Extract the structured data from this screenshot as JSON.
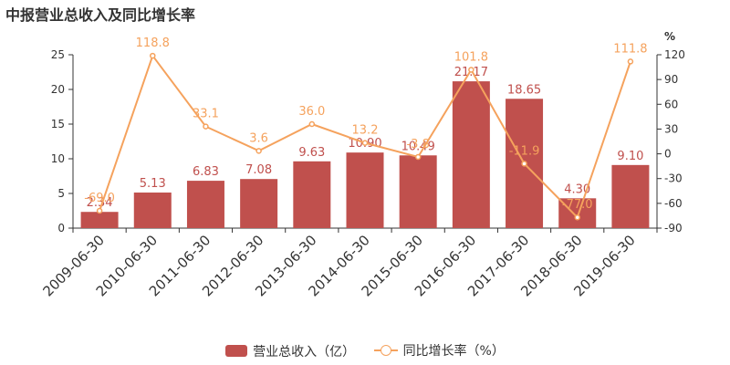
{
  "title": "中报营业总收入及同比增长率",
  "colors": {
    "bar": "#c0504d",
    "line": "#f5a25d",
    "axis": "#333333"
  },
  "chart_data": {
    "type": "bar",
    "categories": [
      "2009-06-30",
      "2010-06-30",
      "2011-06-30",
      "2012-06-30",
      "2013-06-30",
      "2014-06-30",
      "2015-06-30",
      "2016-06-30",
      "2017-06-30",
      "2018-06-30",
      "2019-06-30"
    ],
    "series": [
      {
        "name": "营业总收入（亿）",
        "type": "bar",
        "axis": "left",
        "values": [
          2.34,
          5.13,
          6.83,
          7.08,
          9.63,
          10.9,
          10.49,
          21.17,
          18.65,
          4.3,
          9.1
        ],
        "labels": [
          "2.34",
          "5.13",
          "6.83",
          "7.08",
          "9.63",
          "10.90",
          "10.49",
          "21.17",
          "18.65",
          "4.30",
          "9.10"
        ]
      },
      {
        "name": "同比增长率（%）",
        "type": "line",
        "axis": "right",
        "values": [
          -69.0,
          118.8,
          33.1,
          3.6,
          36.0,
          13.2,
          -3.8,
          101.8,
          -11.9,
          -77.0,
          111.8
        ],
        "labels": [
          "-69.0",
          "118.8",
          "33.1",
          "3.6",
          "36.0",
          "13.2",
          "-3.8",
          "101.8",
          "-11.9",
          "-77.0",
          "111.8"
        ]
      }
    ],
    "y_left": {
      "ylim": [
        0,
        25
      ],
      "ticks": [
        "0",
        "5",
        "10",
        "15",
        "20",
        "25"
      ]
    },
    "y_right": {
      "unit": "%",
      "ylim": [
        -90,
        120
      ],
      "ticks": [
        "-90",
        "-60",
        "-30",
        "0",
        "30",
        "60",
        "90",
        "120"
      ]
    },
    "legend_position": "bottom-center",
    "grid": false
  }
}
